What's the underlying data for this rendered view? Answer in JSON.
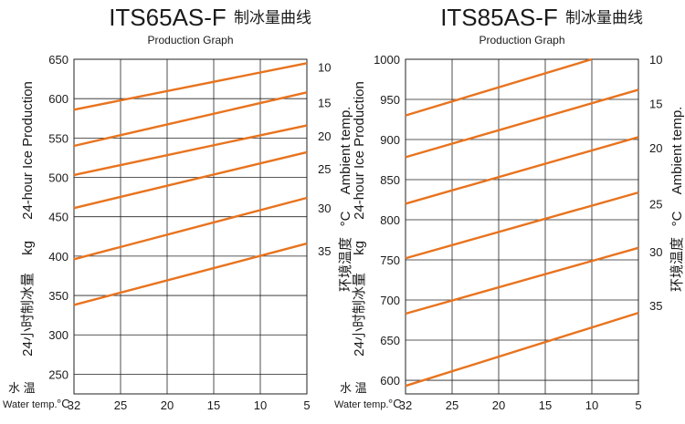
{
  "colors": {
    "series": "#E8731E",
    "grid": "#222222"
  },
  "chart_data": [
    {
      "type": "line",
      "title": "ITS65AS-F",
      "title_cn": "制冰量曲线",
      "subtitle": "Production  Graph",
      "xlabel_cn": "水    温",
      "xlabel_en": "Water temp.",
      "xunit": "°C",
      "ylabel_en": "24-hour  Ice  Production",
      "ylabel_cn": "24小时制冰量",
      "yunit": "kg",
      "y2label_en": "Ambient temp.",
      "y2label_cn": "环境温度",
      "y2unit": "°C",
      "x_ticks": [
        "32",
        "25",
        "20",
        "15",
        "10",
        "5"
      ],
      "x_values": [
        32,
        25,
        20,
        15,
        10,
        5
      ],
      "ylim": [
        225,
        650
      ],
      "y_ticks": [
        650,
        600,
        550,
        500,
        450,
        400,
        350,
        300,
        250
      ],
      "grid": true,
      "series": [
        {
          "name": "10",
          "x": [
            32,
            5
          ],
          "y": [
            586,
            645
          ]
        },
        {
          "name": "15",
          "x": [
            32,
            5
          ],
          "y": [
            540,
            608
          ]
        },
        {
          "name": "20",
          "x": [
            32,
            5
          ],
          "y": [
            503,
            566
          ]
        },
        {
          "name": "25",
          "x": [
            32,
            5
          ],
          "y": [
            461,
            532
          ]
        },
        {
          "name": "30",
          "x": [
            32,
            5
          ],
          "y": [
            396,
            474
          ]
        },
        {
          "name": "35",
          "x": [
            32,
            5
          ],
          "y": [
            338,
            416
          ]
        }
      ],
      "right_label_y": [
        640,
        595,
        553,
        511,
        461,
        407
      ]
    },
    {
      "type": "line",
      "title": "ITS85AS-F",
      "title_cn": "制冰量曲线",
      "subtitle": "Production  Graph",
      "xlabel_cn": "水    温",
      "xlabel_en": "Water temp.",
      "xunit": "°C",
      "ylabel_en": "24-hour  Ice  Production",
      "ylabel_cn": "24小时制冰量",
      "yunit": "kg",
      "y2label_en": "Ambient temp.",
      "y2label_cn": "环境温度",
      "y2unit": "°C",
      "x_ticks": [
        "32",
        "25",
        "20",
        "15",
        "10",
        "5"
      ],
      "x_values": [
        32,
        25,
        20,
        15,
        10,
        5
      ],
      "ylim": [
        583,
        1000
      ],
      "y_ticks": [
        1000,
        950,
        900,
        850,
        800,
        750,
        700,
        650,
        600
      ],
      "grid": true,
      "series": [
        {
          "name": "10",
          "x": [
            32,
            10
          ],
          "y": [
            930,
            1000
          ]
        },
        {
          "name": "15",
          "x": [
            32,
            5
          ],
          "y": [
            878,
            962
          ]
        },
        {
          "name": "20",
          "x": [
            32,
            5
          ],
          "y": [
            820,
            903
          ]
        },
        {
          "name": "25",
          "x": [
            32,
            5
          ],
          "y": [
            752,
            834
          ]
        },
        {
          "name": "30",
          "x": [
            32,
            5
          ],
          "y": [
            683,
            765
          ]
        },
        {
          "name": "35",
          "x": [
            32,
            5
          ],
          "y": [
            593,
            684
          ]
        }
      ],
      "right_label_y": [
        1000,
        945,
        890,
        820,
        760,
        693
      ]
    }
  ]
}
